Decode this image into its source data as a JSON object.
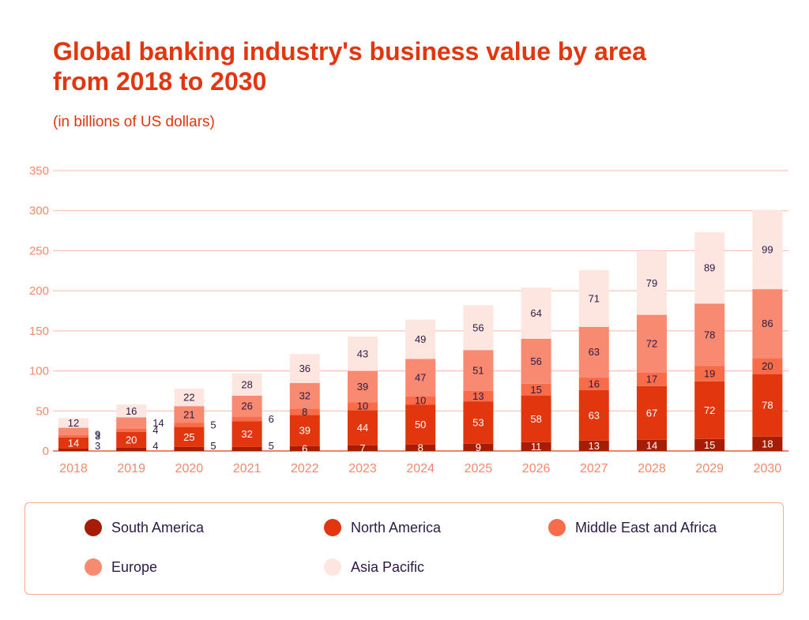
{
  "chart_data": {
    "type": "bar",
    "stacked": true,
    "title": "Global banking industry's business value by area from 2018 to 2030",
    "subtitle": "(in billions of US dollars)",
    "categories": [
      "2018",
      "2019",
      "2020",
      "2021",
      "2022",
      "2023",
      "2024",
      "2025",
      "2026",
      "2027",
      "2028",
      "2029",
      "2030"
    ],
    "yticks": [
      0,
      50,
      100,
      150,
      200,
      250,
      300,
      350
    ],
    "ylim": [
      0,
      350
    ],
    "grid": true,
    "legend_position": "bottom",
    "series": [
      {
        "name": "South America",
        "color": "#a51d04",
        "values": [
          3,
          4,
          5,
          5,
          6,
          7,
          8,
          9,
          11,
          13,
          14,
          15,
          18
        ]
      },
      {
        "name": "North America",
        "color": "#e2360f",
        "values": [
          14,
          20,
          25,
          32,
          39,
          44,
          50,
          53,
          58,
          63,
          67,
          72,
          78
        ]
      },
      {
        "name": "Middle East and Africa",
        "color": "#f96c4a",
        "values": [
          3,
          4,
          5,
          6,
          8,
          10,
          10,
          13,
          15,
          16,
          17,
          19,
          20
        ]
      },
      {
        "name": "Europe",
        "color": "#f98a72",
        "values": [
          9,
          14,
          21,
          26,
          32,
          39,
          47,
          51,
          56,
          63,
          72,
          78,
          86
        ]
      },
      {
        "name": "Asia Pacific",
        "color": "#fee6e0",
        "values": [
          12,
          16,
          22,
          28,
          36,
          43,
          49,
          56,
          64,
          71,
          79,
          89,
          99
        ]
      }
    ]
  }
}
